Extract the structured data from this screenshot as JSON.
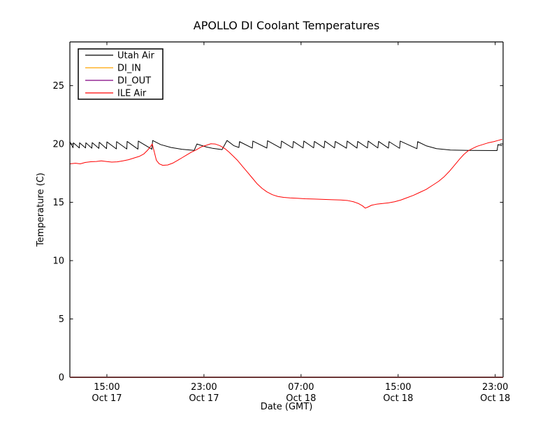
{
  "title": "APOLLO DI Coolant Temperatures",
  "axes": {
    "xlabel": "Date (GMT)",
    "ylabel": "Temperature (C)",
    "x_min_hours": 11.95,
    "x_max_hours": 47.65,
    "y_min": 0,
    "y_max": 28.75,
    "x_ticks": [
      {
        "value": 15,
        "time": "15:00",
        "date": "Oct 17"
      },
      {
        "value": 23,
        "time": "23:00",
        "date": "Oct 17"
      },
      {
        "value": 31,
        "time": "07:00",
        "date": "Oct 18"
      },
      {
        "value": 39,
        "time": "15:00",
        "date": "Oct 18"
      },
      {
        "value": 47,
        "time": "23:00",
        "date": "Oct 18"
      }
    ],
    "y_ticks": [
      0,
      5,
      10,
      15,
      20,
      25
    ]
  },
  "legend": {
    "entries": [
      {
        "label": "Utah Air",
        "color": "#000000"
      },
      {
        "label": "DI_IN",
        "color": "#ffa500"
      },
      {
        "label": "DI_OUT",
        "color": "#800080"
      },
      {
        "label": "ILE Air",
        "color": "#ff0000"
      }
    ]
  },
  "colors": {
    "utah_air": "#000000",
    "di_in": "#ffa500",
    "di_out": "#800080",
    "ile_air": "#ff0000",
    "bottom_spine_blend": "#6b3636"
  },
  "chart_data": {
    "type": "line",
    "title": "APOLLO DI Coolant Temperatures",
    "xlabel": "Date (GMT)",
    "ylabel": "Temperature (C)",
    "x_unit": "decimal hours since Oct 17 00:00 GMT",
    "xlim": [
      11.95,
      47.65
    ],
    "ylim": [
      0,
      28.75
    ],
    "grid": false,
    "legend_position": "upper left",
    "series": [
      {
        "name": "Utah Air",
        "color": "#000000",
        "points": [
          [
            11.95,
            20.2
          ],
          [
            12.21,
            19.68
          ],
          [
            12.24,
            20.1
          ],
          [
            12.73,
            19.66
          ],
          [
            12.75,
            20.1
          ],
          [
            13.24,
            19.66
          ],
          [
            13.27,
            20.1
          ],
          [
            13.76,
            19.64
          ],
          [
            13.79,
            20.12
          ],
          [
            14.34,
            19.62
          ],
          [
            14.37,
            20.15
          ],
          [
            14.97,
            19.6
          ],
          [
            15.0,
            20.18
          ],
          [
            15.78,
            19.58
          ],
          [
            15.8,
            20.2
          ],
          [
            16.64,
            19.57
          ],
          [
            16.67,
            20.22
          ],
          [
            17.56,
            19.56
          ],
          [
            17.59,
            20.25
          ],
          [
            18.71,
            19.55
          ],
          [
            18.77,
            20.3
          ],
          [
            19.43,
            19.95
          ],
          [
            20.29,
            19.7
          ],
          [
            21.16,
            19.55
          ],
          [
            22.19,
            19.45
          ],
          [
            22.42,
            20.0
          ],
          [
            23.17,
            19.75
          ],
          [
            23.75,
            19.62
          ],
          [
            24.49,
            19.52
          ],
          [
            24.9,
            20.3
          ],
          [
            25.47,
            19.85
          ],
          [
            25.88,
            19.7
          ],
          [
            25.93,
            20.2
          ],
          [
            26.98,
            19.65
          ],
          [
            27.03,
            20.25
          ],
          [
            28.18,
            19.65
          ],
          [
            28.24,
            20.28
          ],
          [
            29.33,
            19.65
          ],
          [
            29.39,
            20.25
          ],
          [
            30.31,
            19.66
          ],
          [
            30.37,
            20.22
          ],
          [
            31.17,
            19.66
          ],
          [
            31.23,
            20.25
          ],
          [
            32.04,
            19.67
          ],
          [
            32.1,
            20.22
          ],
          [
            32.9,
            19.67
          ],
          [
            32.96,
            20.25
          ],
          [
            33.76,
            19.66
          ],
          [
            33.82,
            20.22
          ],
          [
            34.74,
            19.64
          ],
          [
            34.8,
            20.25
          ],
          [
            35.61,
            19.65
          ],
          [
            35.67,
            20.22
          ],
          [
            36.47,
            19.66
          ],
          [
            36.53,
            20.25
          ],
          [
            37.33,
            19.66
          ],
          [
            37.39,
            20.22
          ],
          [
            38.2,
            19.65
          ],
          [
            38.25,
            20.2
          ],
          [
            39.12,
            19.63
          ],
          [
            39.17,
            20.25
          ],
          [
            40.55,
            19.6
          ],
          [
            40.61,
            20.2
          ],
          [
            41.3,
            19.85
          ],
          [
            42.16,
            19.6
          ],
          [
            43.31,
            19.48
          ],
          [
            44.75,
            19.45
          ],
          [
            47.15,
            19.44
          ],
          [
            47.23,
            19.95
          ],
          [
            47.57,
            19.85
          ]
        ]
      },
      {
        "name": "DI_IN",
        "color": "#ffa500",
        "points": [
          [
            11.95,
            0
          ],
          [
            47.65,
            0
          ]
        ]
      },
      {
        "name": "DI_OUT",
        "color": "#800080",
        "points": [
          [
            11.95,
            0
          ],
          [
            47.65,
            0
          ]
        ]
      },
      {
        "name": "ILE Air",
        "color": "#ff0000",
        "points": [
          [
            11.95,
            18.3
          ],
          [
            12.41,
            18.35
          ],
          [
            12.81,
            18.3
          ],
          [
            13.21,
            18.42
          ],
          [
            13.67,
            18.48
          ],
          [
            14.14,
            18.5
          ],
          [
            14.54,
            18.55
          ],
          [
            14.94,
            18.5
          ],
          [
            15.4,
            18.45
          ],
          [
            15.86,
            18.47
          ],
          [
            16.32,
            18.55
          ],
          [
            16.78,
            18.65
          ],
          [
            17.24,
            18.8
          ],
          [
            17.7,
            18.95
          ],
          [
            18.05,
            19.15
          ],
          [
            18.34,
            19.45
          ],
          [
            18.57,
            19.75
          ],
          [
            18.74,
            20.0
          ],
          [
            18.91,
            19.3
          ],
          [
            19.08,
            18.6
          ],
          [
            19.31,
            18.3
          ],
          [
            19.6,
            18.17
          ],
          [
            20.01,
            18.2
          ],
          [
            20.41,
            18.35
          ],
          [
            20.75,
            18.55
          ],
          [
            21.16,
            18.8
          ],
          [
            21.56,
            19.05
          ],
          [
            21.96,
            19.3
          ],
          [
            22.37,
            19.5
          ],
          [
            22.77,
            19.75
          ],
          [
            23.23,
            19.9
          ],
          [
            23.57,
            20.02
          ],
          [
            23.92,
            20.0
          ],
          [
            24.32,
            19.85
          ],
          [
            24.73,
            19.6
          ],
          [
            25.07,
            19.3
          ],
          [
            25.42,
            18.95
          ],
          [
            25.76,
            18.6
          ],
          [
            26.16,
            18.1
          ],
          [
            26.57,
            17.6
          ],
          [
            26.97,
            17.1
          ],
          [
            27.37,
            16.6
          ],
          [
            27.78,
            16.2
          ],
          [
            28.18,
            15.9
          ],
          [
            28.64,
            15.65
          ],
          [
            29.1,
            15.5
          ],
          [
            29.56,
            15.42
          ],
          [
            30.08,
            15.38
          ],
          [
            30.65,
            15.35
          ],
          [
            31.34,
            15.3
          ],
          [
            32.09,
            15.28
          ],
          [
            32.84,
            15.25
          ],
          [
            33.59,
            15.22
          ],
          [
            34.28,
            15.2
          ],
          [
            34.85,
            15.15
          ],
          [
            35.32,
            15.05
          ],
          [
            35.72,
            14.9
          ],
          [
            36.06,
            14.7
          ],
          [
            36.29,
            14.5
          ],
          [
            36.52,
            14.6
          ],
          [
            36.81,
            14.75
          ],
          [
            37.27,
            14.85
          ],
          [
            37.73,
            14.9
          ],
          [
            38.19,
            14.95
          ],
          [
            38.71,
            15.05
          ],
          [
            39.23,
            15.2
          ],
          [
            39.75,
            15.4
          ],
          [
            40.26,
            15.6
          ],
          [
            40.78,
            15.85
          ],
          [
            41.3,
            16.1
          ],
          [
            41.82,
            16.45
          ],
          [
            42.34,
            16.8
          ],
          [
            42.8,
            17.2
          ],
          [
            43.26,
            17.7
          ],
          [
            43.66,
            18.2
          ],
          [
            44.06,
            18.7
          ],
          [
            44.41,
            19.1
          ],
          [
            44.75,
            19.4
          ],
          [
            45.1,
            19.6
          ],
          [
            45.5,
            19.8
          ],
          [
            45.96,
            19.95
          ],
          [
            46.42,
            20.1
          ],
          [
            46.88,
            20.2
          ],
          [
            47.23,
            20.3
          ],
          [
            47.57,
            20.4
          ]
        ]
      }
    ]
  }
}
